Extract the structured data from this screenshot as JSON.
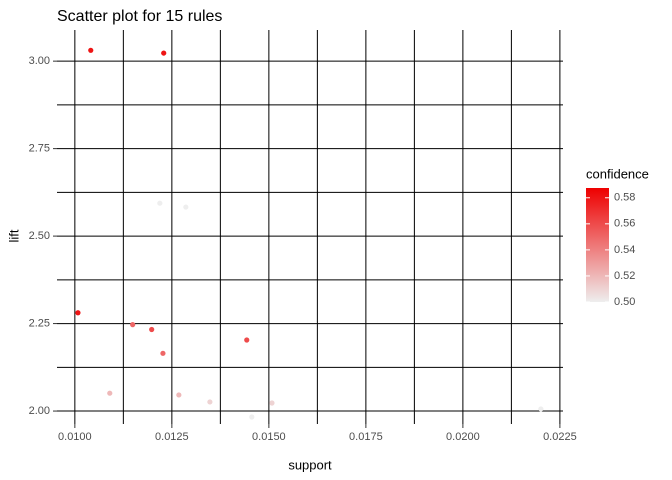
{
  "chart_data": {
    "type": "scatter",
    "title": "Scatter plot for 15 rules",
    "x_label": "support",
    "y_label": "lift",
    "x": [
      0.01041,
      0.01229,
      0.01219,
      0.01286,
      0.01008,
      0.01149,
      0.01198,
      0.01227,
      0.01443,
      0.0109,
      0.01268,
      0.01348,
      0.01456,
      0.01508,
      0.02201
    ],
    "values": [
      3.031,
      3.023,
      2.594,
      2.583,
      2.281,
      2.247,
      2.233,
      2.165,
      2.203,
      2.051,
      2.046,
      2.026,
      1.983,
      2.023,
      2.006
    ],
    "color_values": [
      0.58,
      0.58,
      0.5,
      0.5,
      0.58,
      0.55,
      0.56,
      0.55,
      0.56,
      0.52,
      0.52,
      0.51,
      0.5,
      0.51,
      0.5
    ],
    "color_label": "confidence",
    "color_low": "#eeeeee",
    "color_high": "#ee0000",
    "color_lim": [
      0.5,
      0.5875
    ],
    "color_ticks": [
      {
        "value": 0.5,
        "label": "0.50"
      },
      {
        "value": 0.52,
        "label": "0.52"
      },
      {
        "value": 0.54,
        "label": "0.54"
      },
      {
        "value": 0.56,
        "label": "0.56"
      },
      {
        "value": 0.58,
        "label": "0.58"
      }
    ],
    "xlim": [
      0.00954,
      0.02258
    ],
    "ylim": [
      1.963,
      3.089
    ],
    "xticks": [
      {
        "value": 0.01,
        "label": "0.0100"
      },
      {
        "value": 0.0125,
        "label": "0.0125"
      },
      {
        "value": 0.015,
        "label": "0.0150"
      },
      {
        "value": 0.0175,
        "label": "0.0175"
      },
      {
        "value": 0.02,
        "label": "0.0200"
      },
      {
        "value": 0.0225,
        "label": "0.0225"
      }
    ],
    "yticks": [
      {
        "value": 2,
        "label": "2.00"
      },
      {
        "value": 2.25,
        "label": "2.25"
      },
      {
        "value": 2.5,
        "label": "2.50"
      },
      {
        "value": 2.75,
        "label": "2.75"
      },
      {
        "value": 3,
        "label": "3.00"
      }
    ],
    "grid": true
  }
}
